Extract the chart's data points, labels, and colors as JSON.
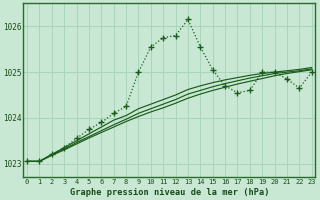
{
  "xlabel": "Graphe pression niveau de la mer (hPa)",
  "background_color": "#c8e8d4",
  "grid_color": "#aad4bb",
  "line_color": "#1a5c1a",
  "x_ticks": [
    0,
    1,
    2,
    3,
    4,
    5,
    6,
    7,
    8,
    9,
    10,
    11,
    12,
    13,
    14,
    15,
    16,
    17,
    18,
    19,
    20,
    21,
    22,
    23
  ],
  "ylim": [
    1022.7,
    1026.5
  ],
  "yticks": [
    1023,
    1024,
    1025,
    1026
  ],
  "series1_x": [
    0,
    1,
    2,
    3,
    4,
    5,
    6,
    7,
    8,
    9,
    10,
    11,
    12,
    13,
    14,
    15,
    16,
    17,
    18,
    19,
    20,
    21,
    22,
    23
  ],
  "series1_y": [
    1023.05,
    1023.05,
    1023.2,
    1023.35,
    1023.55,
    1023.75,
    1023.9,
    1024.1,
    1024.25,
    1025.0,
    1025.55,
    1025.75,
    1025.8,
    1026.15,
    1025.55,
    1025.05,
    1024.7,
    1024.55,
    1024.6,
    1025.0,
    1025.0,
    1024.85,
    1024.65,
    1025.0
  ],
  "series2_x": [
    0,
    1,
    2,
    3,
    4,
    5,
    6,
    7,
    8,
    9,
    10,
    11,
    12,
    13,
    14,
    15,
    16,
    17,
    18,
    19,
    20,
    21,
    22,
    23
  ],
  "series2_y": [
    1023.05,
    1023.05,
    1023.2,
    1023.35,
    1023.5,
    1023.65,
    1023.8,
    1023.95,
    1024.05,
    1024.2,
    1024.3,
    1024.4,
    1024.5,
    1024.62,
    1024.7,
    1024.77,
    1024.83,
    1024.88,
    1024.93,
    1024.97,
    1025.0,
    1025.03,
    1025.06,
    1025.1
  ],
  "series3_x": [
    0,
    1,
    2,
    3,
    4,
    5,
    6,
    7,
    8,
    9,
    10,
    11,
    12,
    13,
    14,
    15,
    16,
    17,
    18,
    19,
    20,
    21,
    22,
    23
  ],
  "series3_y": [
    1023.05,
    1023.05,
    1023.2,
    1023.32,
    1023.46,
    1023.59,
    1023.72,
    1023.85,
    1023.97,
    1024.1,
    1024.2,
    1024.3,
    1024.4,
    1024.52,
    1024.6,
    1024.68,
    1024.75,
    1024.81,
    1024.87,
    1024.92,
    1024.97,
    1025.0,
    1025.03,
    1025.07
  ],
  "series4_x": [
    0,
    1,
    2,
    3,
    4,
    5,
    6,
    7,
    8,
    9,
    10,
    11,
    12,
    13,
    14,
    15,
    16,
    17,
    18,
    19,
    20,
    21,
    22,
    23
  ],
  "series4_y": [
    1023.05,
    1023.05,
    1023.18,
    1023.3,
    1023.43,
    1023.56,
    1023.68,
    1023.8,
    1023.92,
    1024.03,
    1024.13,
    1024.22,
    1024.32,
    1024.43,
    1024.52,
    1024.6,
    1024.67,
    1024.74,
    1024.8,
    1024.86,
    1024.92,
    1024.97,
    1025.01,
    1025.05
  ]
}
